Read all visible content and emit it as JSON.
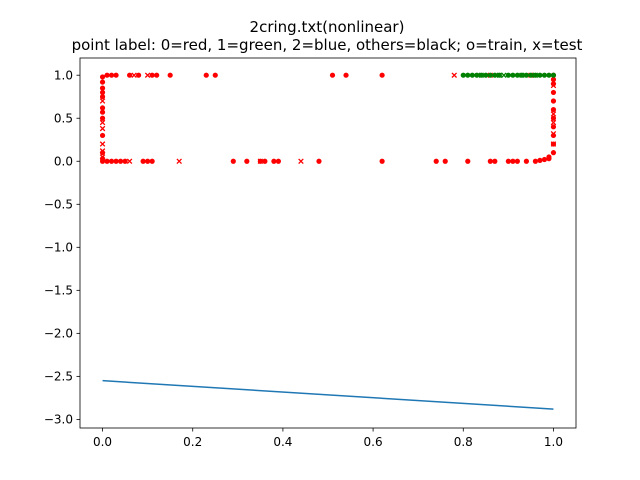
{
  "chart_data": {
    "type": "scatter",
    "title": "2cring.txt(nonlinear)",
    "subtitle": "point label: 0=red, 1=green, 2=blue, others=black; o=train, x=test",
    "xlim": [
      -0.05,
      1.05
    ],
    "ylim": [
      -3.1,
      1.2
    ],
    "xticks": [
      0.0,
      0.2,
      0.4,
      0.6,
      0.8,
      1.0
    ],
    "xtick_labels": [
      "0.0",
      "0.2",
      "0.4",
      "0.6",
      "0.8",
      "1.0"
    ],
    "yticks": [
      1.0,
      0.5,
      0.0,
      -0.5,
      -1.0,
      -1.5,
      -2.0,
      -2.5,
      -3.0
    ],
    "ytick_labels": [
      "1.0",
      "0.5",
      "0.0",
      "−0.5",
      "−1.0",
      "−1.5",
      "−2.0",
      "−2.5",
      "−3.0"
    ],
    "grid": false,
    "colors": {
      "red": "#ff0000",
      "green": "#008000",
      "line": "#1f77b4"
    },
    "series": [
      {
        "marker": "o",
        "color": "#ff0000",
        "points": [
          [
            0.0,
            0.0
          ],
          [
            0.0,
            0.03
          ],
          [
            0.0,
            0.1
          ],
          [
            0.0,
            0.3
          ],
          [
            0.0,
            0.5
          ],
          [
            0.0,
            0.57
          ],
          [
            0.0,
            0.62
          ],
          [
            0.0,
            0.75
          ],
          [
            0.0,
            0.8
          ],
          [
            0.0,
            0.85
          ],
          [
            0.0,
            0.92
          ],
          [
            0.0,
            0.98
          ],
          [
            0.01,
            1.0
          ],
          [
            0.02,
            1.0
          ],
          [
            0.03,
            1.0
          ],
          [
            0.06,
            1.0
          ],
          [
            0.08,
            1.0
          ],
          [
            0.11,
            1.0
          ],
          [
            0.12,
            1.0
          ],
          [
            0.15,
            1.0
          ],
          [
            0.23,
            1.0
          ],
          [
            0.25,
            1.0
          ],
          [
            0.51,
            1.0
          ],
          [
            0.54,
            1.0
          ],
          [
            0.62,
            1.0
          ],
          [
            0.01,
            0.0
          ],
          [
            0.02,
            0.0
          ],
          [
            0.03,
            0.0
          ],
          [
            0.04,
            0.0
          ],
          [
            0.05,
            0.0
          ],
          [
            0.09,
            0.0
          ],
          [
            0.1,
            0.0
          ],
          [
            0.11,
            0.0
          ],
          [
            0.29,
            0.0
          ],
          [
            0.32,
            0.0
          ],
          [
            0.35,
            0.0
          ],
          [
            0.36,
            0.0
          ],
          [
            0.38,
            0.0
          ],
          [
            0.39,
            0.0
          ],
          [
            0.48,
            0.0
          ],
          [
            0.62,
            0.0
          ],
          [
            0.74,
            0.0
          ],
          [
            0.76,
            0.0
          ],
          [
            0.81,
            0.0
          ],
          [
            0.86,
            0.0
          ],
          [
            0.87,
            0.0
          ],
          [
            0.9,
            0.0
          ],
          [
            0.91,
            0.0
          ],
          [
            0.92,
            0.0
          ],
          [
            0.94,
            0.0
          ],
          [
            0.96,
            0.0
          ],
          [
            0.97,
            0.01
          ],
          [
            0.98,
            0.02
          ],
          [
            0.99,
            0.03
          ],
          [
            0.99,
            0.05
          ],
          [
            1.0,
            0.1
          ],
          [
            1.0,
            0.2
          ],
          [
            1.0,
            0.3
          ],
          [
            1.0,
            0.4
          ],
          [
            1.0,
            0.5
          ],
          [
            1.0,
            0.6
          ],
          [
            1.0,
            0.7
          ],
          [
            1.0,
            0.8
          ],
          [
            1.0,
            0.9
          ],
          [
            1.0,
            0.95
          ],
          [
            1.0,
            1.0
          ]
        ]
      },
      {
        "marker": "x",
        "color": "#ff0000",
        "points": [
          [
            0.0,
            0.05
          ],
          [
            0.0,
            0.12
          ],
          [
            0.0,
            0.2
          ],
          [
            0.0,
            0.38
          ],
          [
            0.0,
            0.45
          ],
          [
            0.0,
            0.7
          ],
          [
            0.07,
            1.0
          ],
          [
            0.1,
            1.0
          ],
          [
            0.78,
            1.0
          ],
          [
            0.86,
            1.0
          ],
          [
            0.95,
            1.0
          ],
          [
            1.0,
            0.88
          ],
          [
            0.06,
            0.0
          ],
          [
            0.17,
            0.0
          ],
          [
            0.35,
            0.0
          ],
          [
            0.44,
            0.0
          ],
          [
            1.0,
            0.32
          ],
          [
            1.0,
            0.2
          ],
          [
            1.0,
            0.45
          ],
          [
            1.0,
            0.55
          ]
        ]
      },
      {
        "marker": "o",
        "color": "#008000",
        "points": [
          [
            0.8,
            1.0
          ],
          [
            0.81,
            1.0
          ],
          [
            0.82,
            1.0
          ],
          [
            0.83,
            1.0
          ],
          [
            0.84,
            1.0
          ],
          [
            0.85,
            1.0
          ],
          [
            0.86,
            1.0
          ],
          [
            0.87,
            1.0
          ],
          [
            0.88,
            1.0
          ],
          [
            0.9,
            1.0
          ],
          [
            0.91,
            1.0
          ],
          [
            0.92,
            1.0
          ],
          [
            0.93,
            1.0
          ],
          [
            0.94,
            1.0
          ],
          [
            0.95,
            1.0
          ],
          [
            0.96,
            1.0
          ],
          [
            0.97,
            1.0
          ],
          [
            0.98,
            1.0
          ],
          [
            0.99,
            1.0
          ],
          [
            1.0,
            1.0
          ]
        ]
      },
      {
        "marker": "x",
        "color": "#008000",
        "points": [
          [
            0.84,
            1.0
          ],
          [
            0.88,
            1.0
          ],
          [
            0.89,
            1.0
          ],
          [
            0.93,
            1.0
          ],
          [
            0.96,
            1.0
          ]
        ]
      },
      {
        "type": "line",
        "color": "#1f77b4",
        "points": [
          [
            0.0,
            -2.55
          ],
          [
            1.0,
            -2.88
          ]
        ]
      }
    ]
  }
}
